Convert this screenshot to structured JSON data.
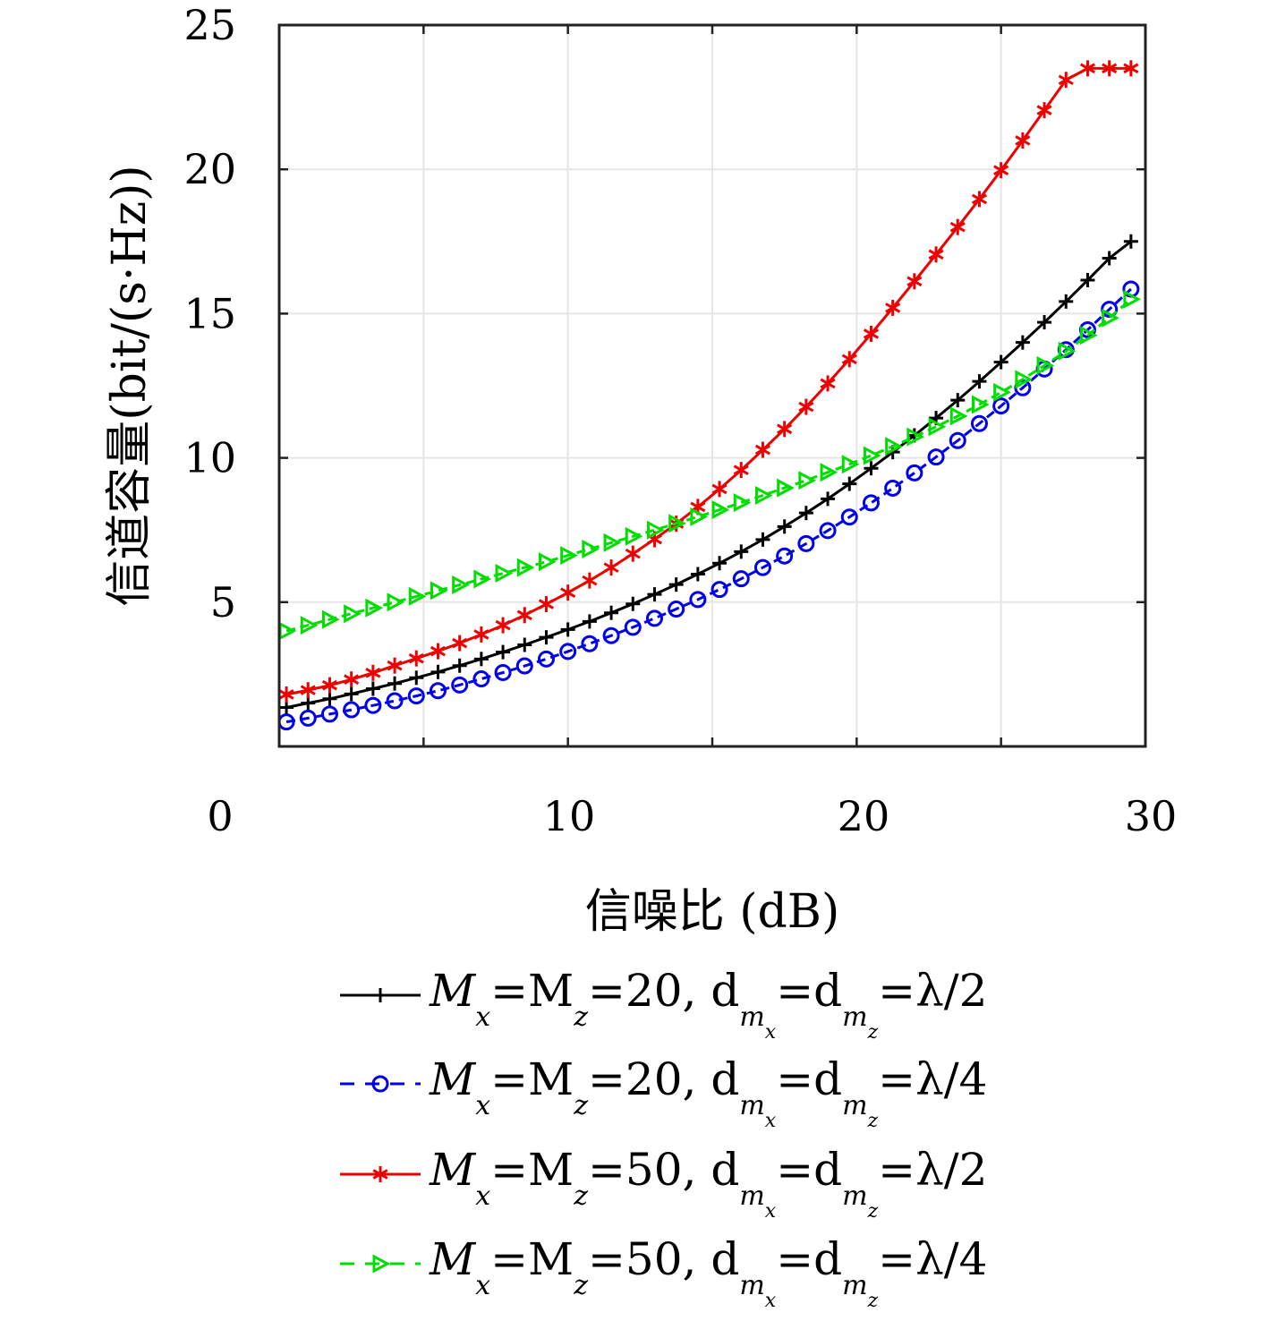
{
  "chart_data": {
    "type": "line",
    "title": "",
    "xlabel": "信噪比 (dB)",
    "ylabel": "信道容量(bit/(s·Hz))",
    "xlim": [
      0,
      30
    ],
    "ylim": [
      0,
      25
    ],
    "xticks": [
      "0",
      "10",
      "20",
      "30"
    ],
    "yticks": [
      "5",
      "10",
      "15",
      "20",
      "25"
    ],
    "grid": true,
    "legend_position": "bottom",
    "x": [
      -0.0,
      0.75,
      1.5,
      2.25,
      3.0,
      3.75,
      4.5,
      5.25,
      6.0,
      6.75,
      7.5,
      8.25,
      9.0,
      9.75,
      10.5,
      11.25,
      12.0,
      12.75,
      13.5,
      14.25,
      15.0,
      15.75,
      16.5,
      17.25,
      18.0,
      18.75,
      19.5,
      20.25,
      21.0,
      21.75,
      22.5,
      23.25,
      24.0,
      24.75,
      25.5,
      26.25,
      27.0,
      27.75,
      28.5,
      29.25
    ],
    "series": [
      {
        "name": "Mx=Mz=20, dmx=dmz=λ/2",
        "legend": {
          "prefix": "M",
          "s1": "x",
          "mid1": "=M",
          "s2": "z",
          "num": "=20,  d",
          "s3": "m",
          "s3b": "x",
          "mid2": "=d",
          "s4": "m",
          "s4b": "z",
          "end": "=λ/2"
        },
        "color": "#000000",
        "dash": "solid",
        "marker": "plus",
        "values": [
          1.35,
          1.5,
          1.65,
          1.82,
          2.0,
          2.18,
          2.38,
          2.58,
          2.8,
          3.03,
          3.27,
          3.52,
          3.78,
          4.05,
          4.33,
          4.63,
          4.94,
          5.27,
          5.61,
          5.97,
          6.35,
          6.75,
          7.17,
          7.62,
          8.09,
          8.58,
          9.1,
          9.64,
          10.2,
          10.78,
          11.38,
          12.0,
          12.65,
          13.32,
          14.0,
          14.7,
          15.42,
          16.16,
          16.92,
          17.5
        ]
      },
      {
        "name": "Mx=Mz=20, dmx=dmz=λ/4",
        "legend": {
          "prefix": "M",
          "s1": "x",
          "mid1": "=M",
          "s2": "z",
          "num": "=20,  d",
          "s3": "m",
          "s3b": "x",
          "mid2": "=d",
          "s4": "m",
          "s4b": "z",
          "end": "=λ/4"
        },
        "color": "#0000ee",
        "dash": "dashed",
        "marker": "circle",
        "values": [
          0.85,
          0.98,
          1.12,
          1.27,
          1.42,
          1.58,
          1.75,
          1.93,
          2.13,
          2.34,
          2.56,
          2.79,
          3.03,
          3.29,
          3.56,
          3.84,
          4.13,
          4.44,
          4.76,
          5.09,
          5.44,
          5.81,
          6.2,
          6.6,
          7.03,
          7.48,
          7.95,
          8.44,
          8.95,
          9.48,
          10.03,
          10.6,
          11.19,
          11.8,
          12.43,
          13.08,
          13.75,
          14.44,
          15.15,
          15.85
        ]
      },
      {
        "name": "Mx=Mz=50, dmx=dmz=λ/2",
        "legend": {
          "prefix": "M",
          "s1": "x",
          "mid1": "=M",
          "s2": "z",
          "num": "=50,  d",
          "s3": "m",
          "s3b": "x",
          "mid2": "=d",
          "s4": "m",
          "s4b": "z",
          "end": "=λ/2"
        },
        "color": "#ee0000",
        "dash": "solid",
        "marker": "asterisk",
        "values": [
          1.8,
          1.95,
          2.12,
          2.32,
          2.55,
          2.8,
          3.05,
          3.3,
          3.58,
          3.88,
          4.2,
          4.55,
          4.93,
          5.33,
          5.75,
          6.2,
          6.68,
          7.18,
          7.72,
          8.3,
          8.92,
          9.58,
          10.28,
          11.0,
          11.77,
          12.58,
          13.42,
          14.3,
          15.2,
          16.12,
          17.05,
          18.0,
          18.97,
          19.97,
          21.0,
          22.05,
          23.1,
          23.5,
          23.5,
          23.5
        ]
      },
      {
        "name": "Mx=Mz=50, dmx=dmz=λ/4",
        "legend": {
          "prefix": "M",
          "s1": "x",
          "mid1": "=M",
          "s2": "z",
          "num": "=50,  d",
          "s3": "m",
          "s3b": "x",
          "mid2": "=d",
          "s4": "m",
          "s4b": "z",
          "end": "=λ/4"
        },
        "color": "#00dd00",
        "dash": "dashed",
        "marker": "triangle-right",
        "values": [
          4.0,
          4.2,
          4.4,
          4.6,
          4.8,
          5.0,
          5.2,
          5.4,
          5.6,
          5.8,
          6.0,
          6.2,
          6.4,
          6.62,
          6.84,
          7.06,
          7.28,
          7.5,
          7.73,
          7.96,
          8.2,
          8.45,
          8.7,
          8.96,
          9.22,
          9.5,
          9.78,
          10.08,
          10.4,
          10.73,
          11.08,
          11.45,
          11.85,
          12.27,
          12.72,
          13.2,
          13.7,
          14.25,
          14.85,
          15.5
        ]
      }
    ]
  }
}
